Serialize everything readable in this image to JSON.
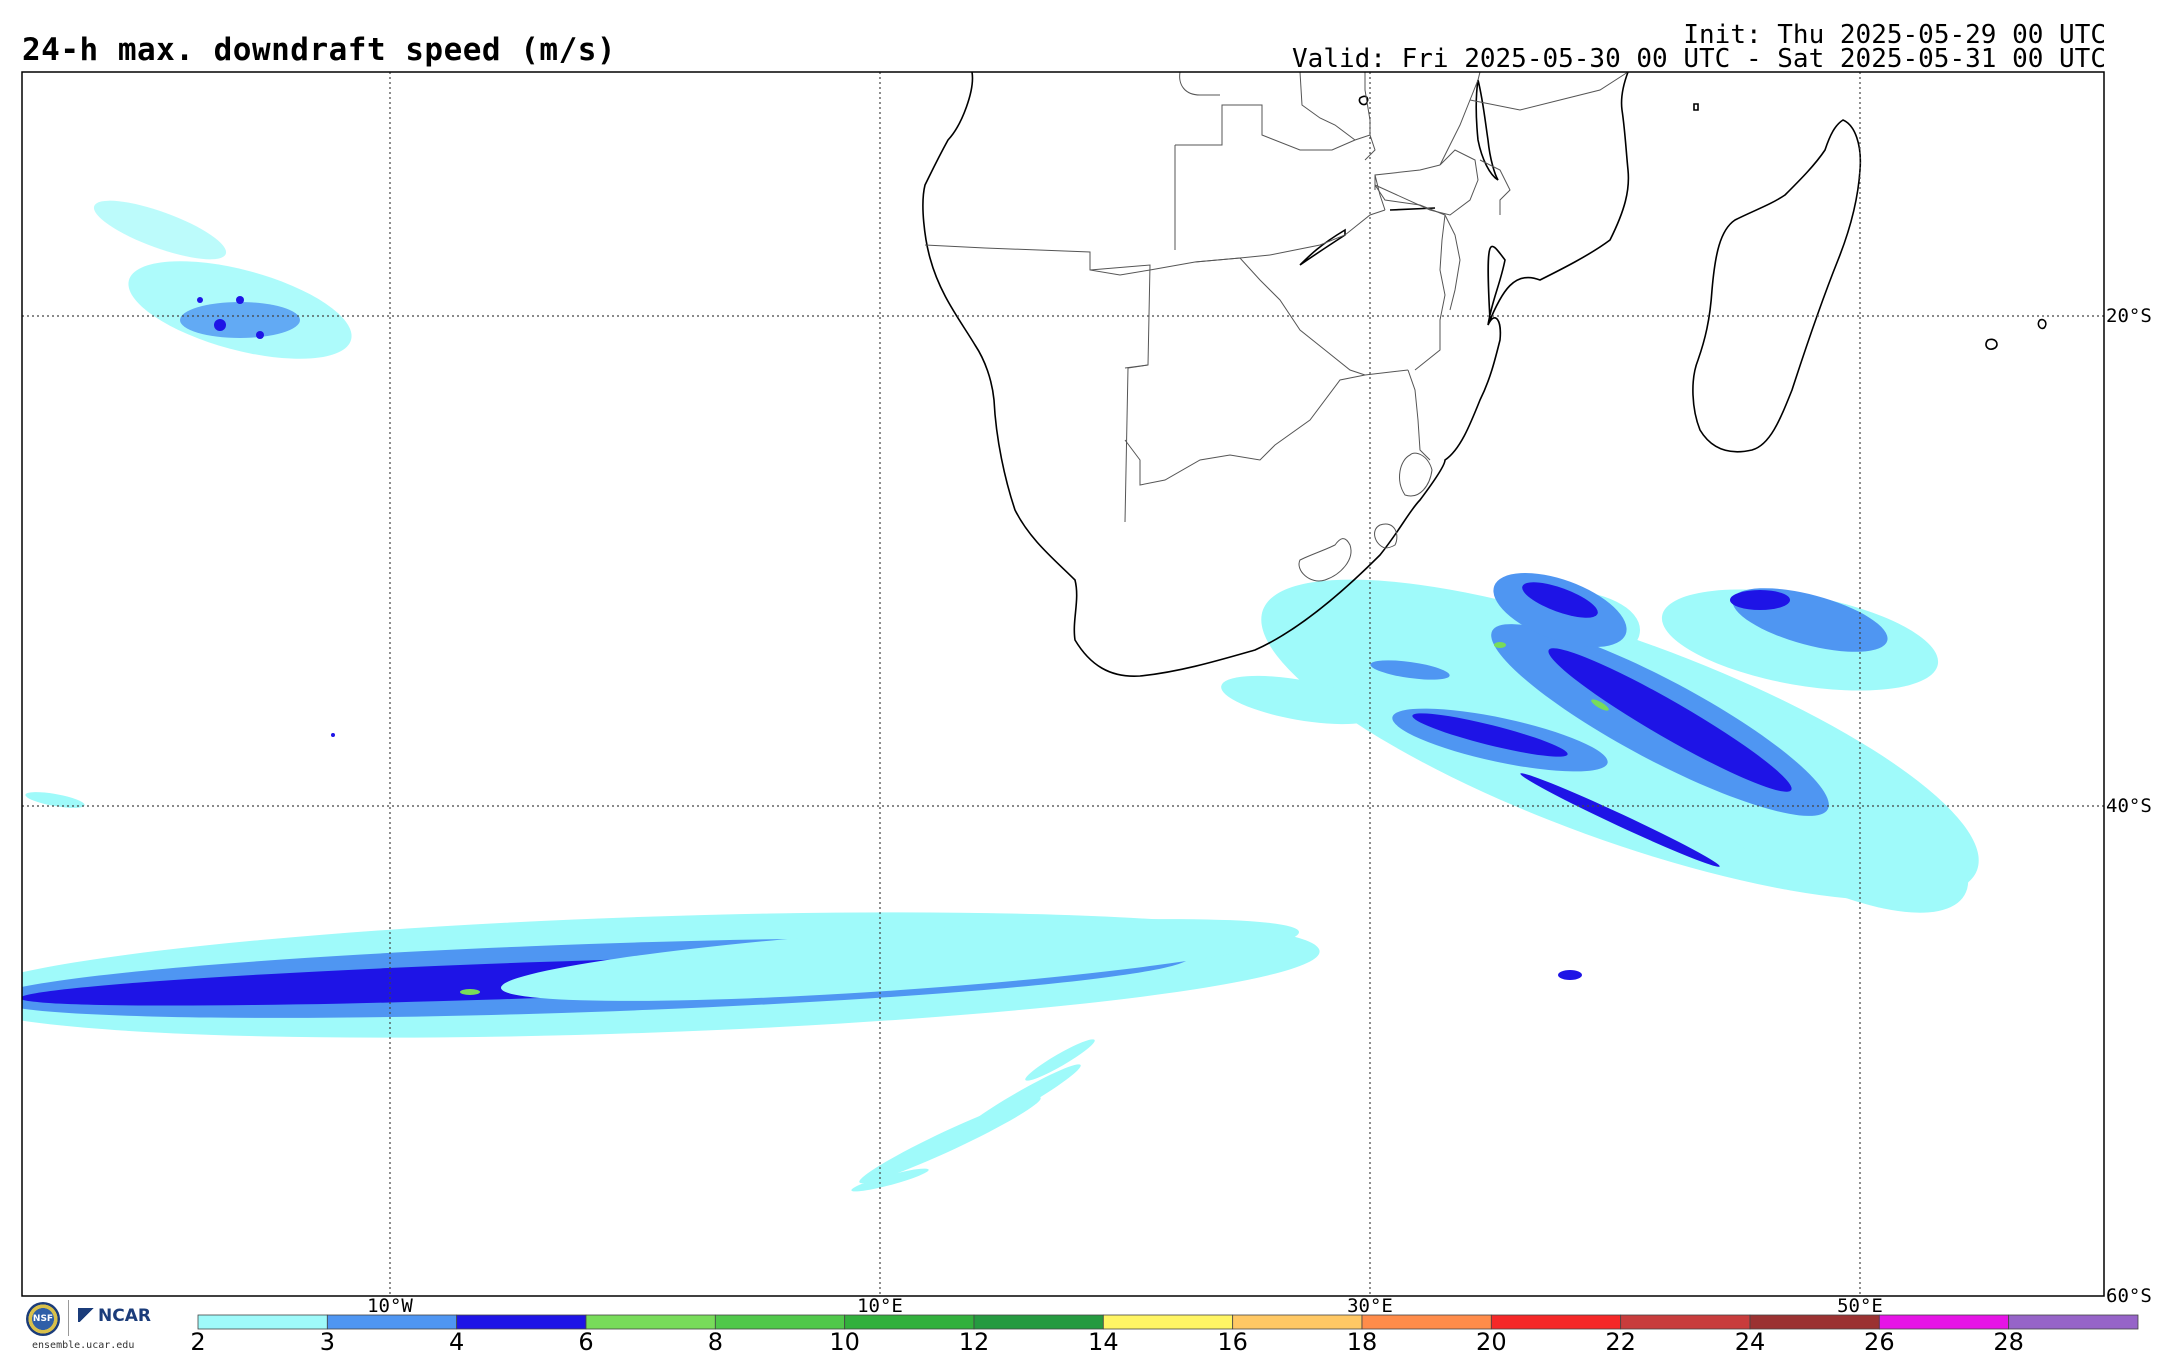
{
  "header": {
    "title": "24-h max. downdraft speed (m/s)",
    "init": "Init: Thu 2025-05-29 00 UTC",
    "valid": "Valid: Fri 2025-05-30 00 UTC - Sat 2025-05-31 00 UTC"
  },
  "map": {
    "lat_labels": [
      "20°S",
      "40°S",
      "60°S"
    ],
    "lon_labels": [
      "10°W",
      "10°E",
      "30°E",
      "50°E"
    ],
    "land_color": "#ffffff",
    "coastline_color": "#000000",
    "border_color": "#555555",
    "gridline_style": "dotted"
  },
  "colorbar": {
    "ticks": [
      "2",
      "3",
      "4",
      "6",
      "8",
      "10",
      "12",
      "14",
      "16",
      "18",
      "20",
      "22",
      "24",
      "26",
      "28"
    ],
    "colors": [
      "#9ffafa",
      "#4f96f2",
      "#1e14e6",
      "#78dc5a",
      "#50c84a",
      "#32b03c",
      "#259a40",
      "#fff564",
      "#ffc864",
      "#ff8c4a",
      "#f52828",
      "#c83c3c",
      "#9b3232",
      "#e614e6",
      "#9664c8"
    ]
  },
  "logo": {
    "nsf_label": "NSF",
    "ncar_label": "NCAR",
    "site": "ensemble.ucar.edu"
  }
}
